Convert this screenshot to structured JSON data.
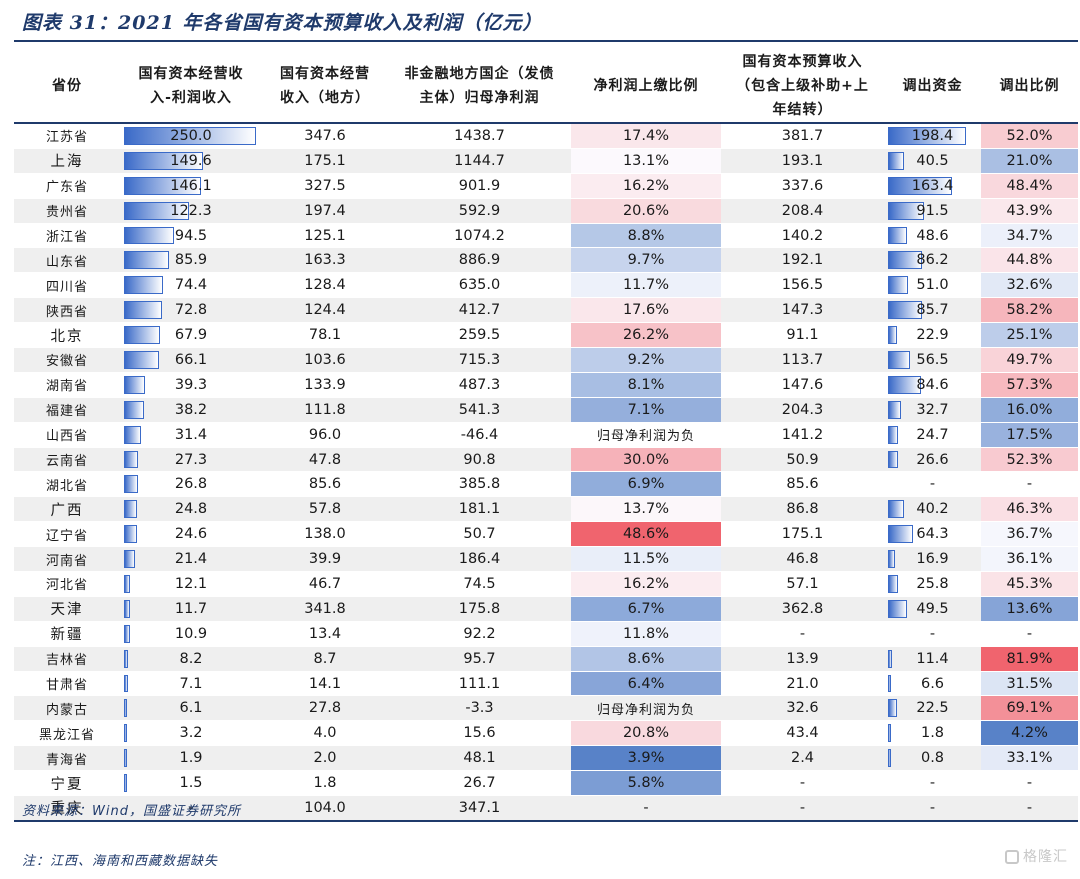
{
  "title": "图表 31：2021 年各省国有资本预算收入及利润（亿元）",
  "headers": [
    [
      "省份"
    ],
    [
      "国有资本经营收",
      "入-利润收入"
    ],
    [
      "国有资本经营",
      "收入（地方）"
    ],
    [
      "非金融地方国企（发债",
      "主体）归母净利润"
    ],
    [
      "净利润上缴比例"
    ],
    [
      "国有资本预算收入",
      "（包含上级补助+上",
      "年结转）"
    ],
    [
      "调出资金"
    ],
    [
      "调出比例"
    ]
  ],
  "rows": [
    {
      "prov": "江苏省",
      "profit": "250.0",
      "op": "347.6",
      "np": "1438.7",
      "ratio": "17.4%",
      "budget": "381.7",
      "transfer": "198.4",
      "tratio": "52.0%"
    },
    {
      "prov": "上海",
      "profit": "149.6",
      "op": "175.1",
      "np": "1144.7",
      "ratio": "13.1%",
      "budget": "193.1",
      "transfer": "40.5",
      "tratio": "21.0%"
    },
    {
      "prov": "广东省",
      "profit": "146.1",
      "op": "327.5",
      "np": "901.9",
      "ratio": "16.2%",
      "budget": "337.6",
      "transfer": "163.4",
      "tratio": "48.4%"
    },
    {
      "prov": "贵州省",
      "profit": "122.3",
      "op": "197.4",
      "np": "592.9",
      "ratio": "20.6%",
      "budget": "208.4",
      "transfer": "91.5",
      "tratio": "43.9%"
    },
    {
      "prov": "浙江省",
      "profit": "94.5",
      "op": "125.1",
      "np": "1074.2",
      "ratio": "8.8%",
      "budget": "140.2",
      "transfer": "48.6",
      "tratio": "34.7%"
    },
    {
      "prov": "山东省",
      "profit": "85.9",
      "op": "163.3",
      "np": "886.9",
      "ratio": "9.7%",
      "budget": "192.1",
      "transfer": "86.2",
      "tratio": "44.8%"
    },
    {
      "prov": "四川省",
      "profit": "74.4",
      "op": "128.4",
      "np": "635.0",
      "ratio": "11.7%",
      "budget": "156.5",
      "transfer": "51.0",
      "tratio": "32.6%"
    },
    {
      "prov": "陕西省",
      "profit": "72.8",
      "op": "124.4",
      "np": "412.7",
      "ratio": "17.6%",
      "budget": "147.3",
      "transfer": "85.7",
      "tratio": "58.2%"
    },
    {
      "prov": "北京",
      "profit": "67.9",
      "op": "78.1",
      "np": "259.5",
      "ratio": "26.2%",
      "budget": "91.1",
      "transfer": "22.9",
      "tratio": "25.1%"
    },
    {
      "prov": "安徽省",
      "profit": "66.1",
      "op": "103.6",
      "np": "715.3",
      "ratio": "9.2%",
      "budget": "113.7",
      "transfer": "56.5",
      "tratio": "49.7%"
    },
    {
      "prov": "湖南省",
      "profit": "39.3",
      "op": "133.9",
      "np": "487.3",
      "ratio": "8.1%",
      "budget": "147.6",
      "transfer": "84.6",
      "tratio": "57.3%"
    },
    {
      "prov": "福建省",
      "profit": "38.2",
      "op": "111.8",
      "np": "541.3",
      "ratio": "7.1%",
      "budget": "204.3",
      "transfer": "32.7",
      "tratio": "16.0%"
    },
    {
      "prov": "山西省",
      "profit": "31.4",
      "op": "96.0",
      "np": "-46.4",
      "ratio": "归母净利润为负",
      "budget": "141.2",
      "transfer": "24.7",
      "tratio": "17.5%"
    },
    {
      "prov": "云南省",
      "profit": "27.3",
      "op": "47.8",
      "np": "90.8",
      "ratio": "30.0%",
      "budget": "50.9",
      "transfer": "26.6",
      "tratio": "52.3%"
    },
    {
      "prov": "湖北省",
      "profit": "26.8",
      "op": "85.6",
      "np": "385.8",
      "ratio": "6.9%",
      "budget": "85.6",
      "transfer": "-",
      "tratio": "-"
    },
    {
      "prov": "广西",
      "profit": "24.8",
      "op": "57.8",
      "np": "181.1",
      "ratio": "13.7%",
      "budget": "86.8",
      "transfer": "40.2",
      "tratio": "46.3%"
    },
    {
      "prov": "辽宁省",
      "profit": "24.6",
      "op": "138.0",
      "np": "50.7",
      "ratio": "48.6%",
      "budget": "175.1",
      "transfer": "64.3",
      "tratio": "36.7%"
    },
    {
      "prov": "河南省",
      "profit": "21.4",
      "op": "39.9",
      "np": "186.4",
      "ratio": "11.5%",
      "budget": "46.8",
      "transfer": "16.9",
      "tratio": "36.1%"
    },
    {
      "prov": "河北省",
      "profit": "12.1",
      "op": "46.7",
      "np": "74.5",
      "ratio": "16.2%",
      "budget": "57.1",
      "transfer": "25.8",
      "tratio": "45.3%"
    },
    {
      "prov": "天津",
      "profit": "11.7",
      "op": "341.8",
      "np": "175.8",
      "ratio": "6.7%",
      "budget": "362.8",
      "transfer": "49.5",
      "tratio": "13.6%"
    },
    {
      "prov": "新疆",
      "profit": "10.9",
      "op": "13.4",
      "np": "92.2",
      "ratio": "11.8%",
      "budget": "-",
      "transfer": "-",
      "tratio": "-"
    },
    {
      "prov": "吉林省",
      "profit": "8.2",
      "op": "8.7",
      "np": "95.7",
      "ratio": "8.6%",
      "budget": "13.9",
      "transfer": "11.4",
      "tratio": "81.9%"
    },
    {
      "prov": "甘肃省",
      "profit": "7.1",
      "op": "14.1",
      "np": "111.1",
      "ratio": "6.4%",
      "budget": "21.0",
      "transfer": "6.6",
      "tratio": "31.5%"
    },
    {
      "prov": "内蒙古",
      "profit": "6.1",
      "op": "27.8",
      "np": "-3.3",
      "ratio": "归母净利润为负",
      "budget": "32.6",
      "transfer": "22.5",
      "tratio": "69.1%"
    },
    {
      "prov": "黑龙江省",
      "profit": "3.2",
      "op": "4.0",
      "np": "15.6",
      "ratio": "20.8%",
      "budget": "43.4",
      "transfer": "1.8",
      "tratio": "4.2%"
    },
    {
      "prov": "青海省",
      "profit": "1.9",
      "op": "2.0",
      "np": "48.1",
      "ratio": "3.9%",
      "budget": "2.4",
      "transfer": "0.8",
      "tratio": "33.1%"
    },
    {
      "prov": "宁夏",
      "profit": "1.5",
      "op": "1.8",
      "np": "26.7",
      "ratio": "5.8%",
      "budget": "-",
      "transfer": "-",
      "tratio": "-"
    },
    {
      "prov": "重庆",
      "profit": "-",
      "op": "104.0",
      "np": "347.1",
      "ratio": "-",
      "budget": "-",
      "transfer": "-",
      "tratio": "-"
    }
  ],
  "source": "资料来源：Wind，国盛证券研究所",
  "note": "注：江西、海南和西藏数据缺失",
  "watermark": "格隆汇"
}
